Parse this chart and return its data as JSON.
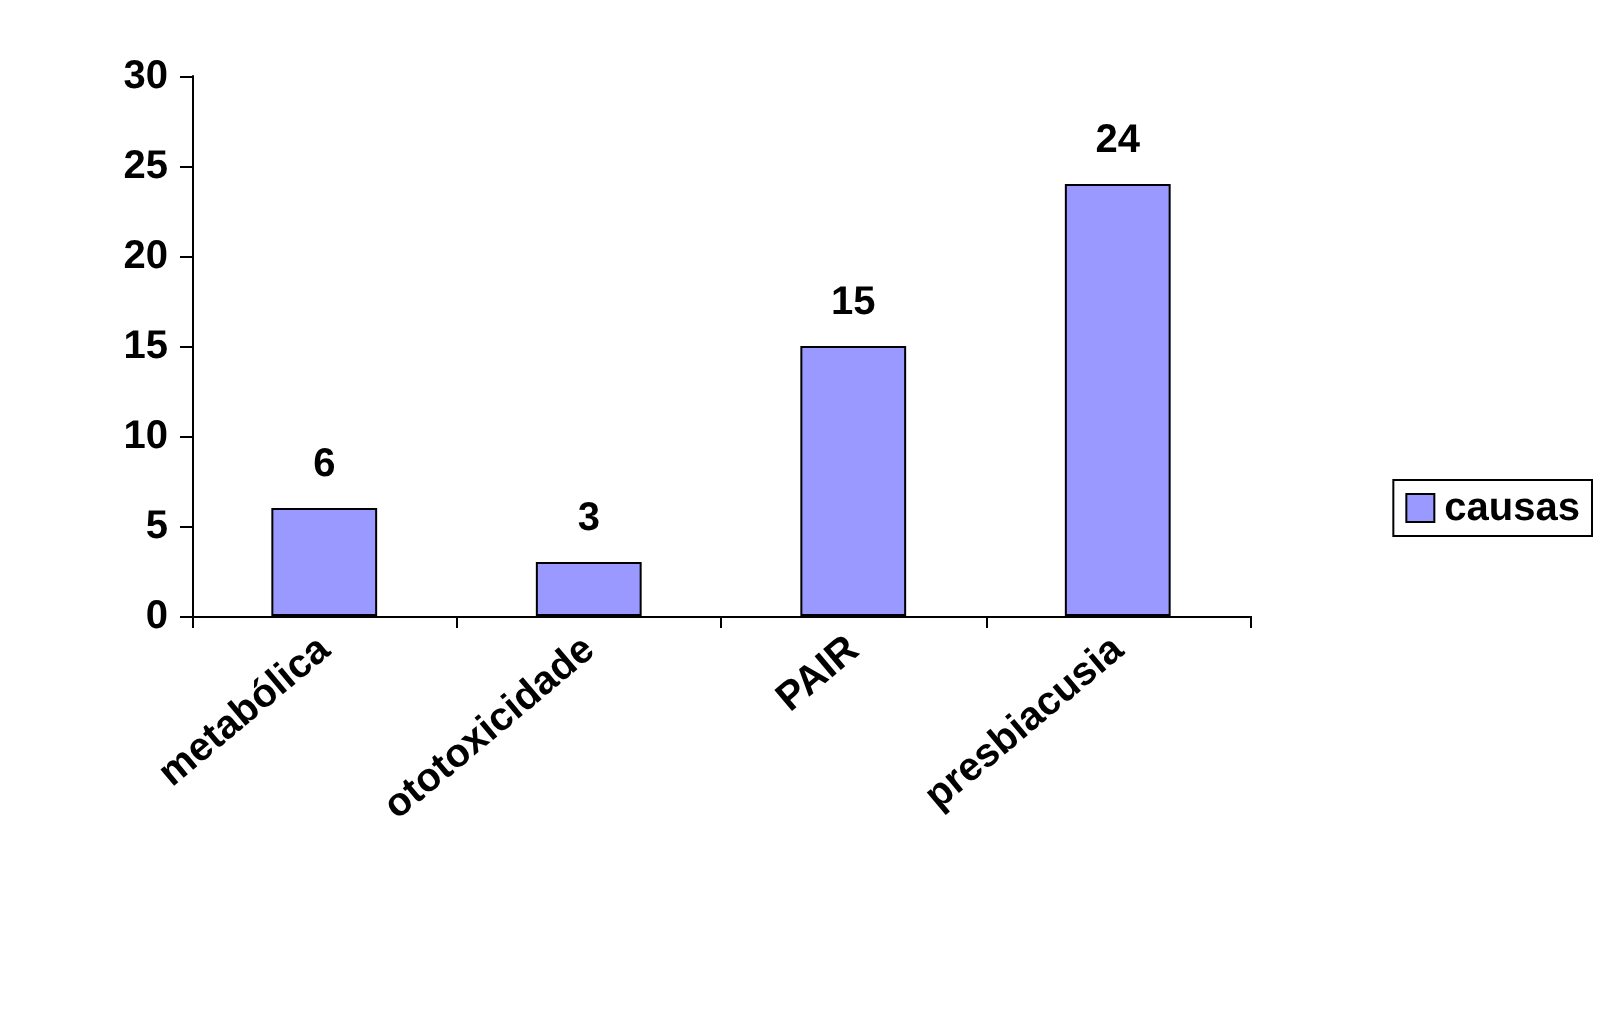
{
  "chart_data": {
    "type": "bar",
    "categories": [
      "metabólica",
      "ototoxicidade",
      "PAIR",
      "presbiacusia"
    ],
    "series": [
      {
        "name": "causas",
        "color": "#9999ff",
        "values": [
          6,
          3,
          15,
          24
        ]
      }
    ],
    "ylim": [
      0,
      30
    ],
    "yticks": [
      0,
      5,
      10,
      15,
      20,
      25,
      30
    ],
    "data_labels": true,
    "grid": false,
    "legend": "right"
  }
}
